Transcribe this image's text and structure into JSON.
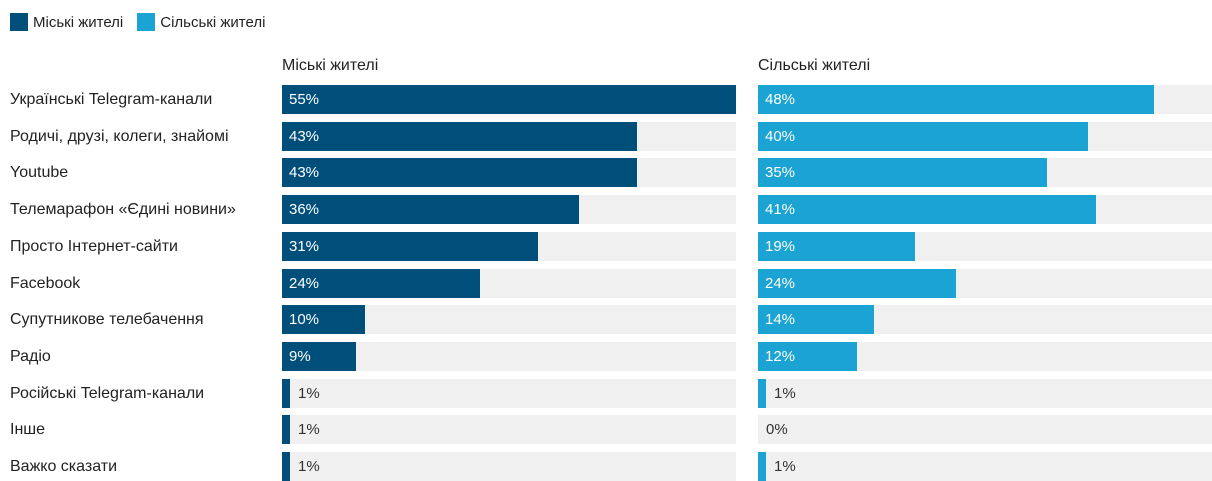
{
  "legend": [
    {
      "label": "Міські жителі",
      "color": "#004f7b"
    },
    {
      "label": "Сільські жителі",
      "color": "#1aa3d3"
    }
  ],
  "chart_data": {
    "type": "bar",
    "orientation": "horizontal",
    "categories": [
      "Українські Telegram-канали",
      "Родичі, друзі, колеги, знайомі",
      "Youtube",
      "Телемарафон «Єдині новини»",
      "Просто Інтернет-сайти",
      "Facebook",
      "Супутникове телебачення",
      "Радіо",
      "Російські Telegram-канали",
      "Інше",
      "Важко сказати"
    ],
    "series": [
      {
        "name": "Міські жителі",
        "color": "#004f7b",
        "values": [
          55,
          43,
          43,
          36,
          31,
          24,
          10,
          9,
          1,
          1,
          1
        ],
        "labels": [
          "55%",
          "43%",
          "43%",
          "36%",
          "31%",
          "24%",
          "10%",
          "9%",
          "1%",
          "1%",
          "1%"
        ]
      },
      {
        "name": "Сільські жителі",
        "color": "#1aa3d3",
        "values": [
          48,
          40,
          35,
          41,
          19,
          24,
          14,
          12,
          1,
          0,
          1
        ],
        "labels": [
          "48%",
          "40%",
          "35%",
          "41%",
          "19%",
          "24%",
          "14%",
          "12%",
          "1%",
          "0%",
          "1%"
        ]
      }
    ],
    "xlim": [
      0,
      55
    ],
    "legend_position": "top-left",
    "grid": false
  }
}
